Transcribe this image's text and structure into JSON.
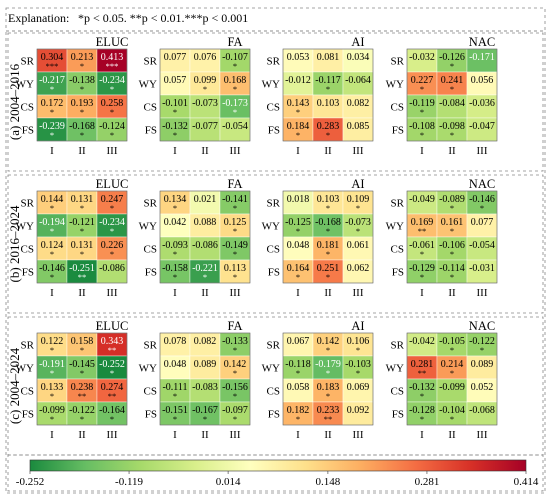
{
  "explanation": {
    "label": "Explanation:",
    "text": "*p < 0.05. **p < 0.01.***p < 0.001"
  },
  "colorbar": {
    "colors": [
      "#1a8a3e",
      "#66bd63",
      "#a6d96a",
      "#d9ef8b",
      "#ffffbf",
      "#fee08b",
      "#fdae61",
      "#f46d43",
      "#d73027",
      "#a50026"
    ],
    "ticks": [
      -0.252,
      -0.119,
      0.014,
      0.148,
      0.281,
      0.414
    ],
    "tick_labels": [
      "-0.252",
      "-0.119",
      "0.014",
      "0.148",
      "0.281",
      "0.414"
    ]
  },
  "chart_data": {
    "type": "heatmap",
    "value_range": [
      -0.252,
      0.414
    ],
    "row_labels": [
      "SR",
      "WY",
      "CS",
      "FS"
    ],
    "col_labels": [
      "I",
      "II",
      "III"
    ],
    "panels": [
      {
        "label": "(a) 2004–2016",
        "charts": [
          {
            "title": "ELUC",
            "values": [
              [
                0.304,
                0.213,
                0.413
              ],
              [
                -0.217,
                -0.138,
                -0.234
              ],
              [
                0.172,
                0.193,
                0.258
              ],
              [
                -0.239,
                -0.168,
                -0.124
              ]
            ],
            "sig": [
              [
                "***",
                "*",
                "***"
              ],
              [
                "*",
                "*",
                "*"
              ],
              [
                "*",
                "*",
                "*"
              ],
              [
                "*",
                "*",
                "*"
              ]
            ]
          },
          {
            "title": "FA",
            "values": [
              [
                0.077,
                0.076,
                -0.107
              ],
              [
                0.057,
                0.099,
                0.168
              ],
              [
                -0.101,
                -0.073,
                -0.173
              ],
              [
                -0.132,
                -0.077,
                -0.054
              ]
            ],
            "sig": [
              [
                "",
                "",
                "*"
              ],
              [
                "",
                "*",
                "*"
              ],
              [
                "*",
                "",
                "*"
              ],
              [
                "*",
                "",
                ""
              ]
            ]
          },
          {
            "title": "AI",
            "values": [
              [
                0.053,
                0.081,
                0.034
              ],
              [
                -0.012,
                -0.117,
                -0.064
              ],
              [
                0.143,
                0.103,
                0.082
              ],
              [
                0.184,
                0.283,
                0.085
              ]
            ],
            "sig": [
              [
                "",
                "",
                ""
              ],
              [
                "",
                "*",
                ""
              ],
              [
                "*",
                "",
                ""
              ],
              [
                "*",
                "*",
                ""
              ]
            ]
          },
          {
            "title": "NAC",
            "values": [
              [
                -0.032,
                -0.126,
                -0.171
              ],
              [
                0.227,
                0.241,
                0.056
              ],
              [
                -0.119,
                -0.084,
                -0.036
              ],
              [
                -0.108,
                -0.098,
                -0.047
              ]
            ],
            "sig": [
              [
                "",
                "*",
                ""
              ],
              [
                "*",
                "*",
                ""
              ],
              [
                "*",
                "",
                ""
              ],
              [
                "*",
                "*",
                ""
              ]
            ]
          }
        ]
      },
      {
        "label": "(b) 2016–2024",
        "charts": [
          {
            "title": "ELUC",
            "values": [
              [
                0.144,
                0.131,
                0.247
              ],
              [
                -0.194,
                -0.121,
                -0.234
              ],
              [
                0.124,
                0.131,
                0.226
              ],
              [
                -0.146,
                -0.251,
                -0.086
              ]
            ],
            "sig": [
              [
                "*",
                "*",
                "*"
              ],
              [
                "*",
                "*",
                "*"
              ],
              [
                "*",
                "*",
                "*"
              ],
              [
                "*",
                "**",
                ""
              ]
            ]
          },
          {
            "title": "FA",
            "values": [
              [
                0.134,
                0.021,
                -0.141
              ],
              [
                0.042,
                0.088,
                0.125
              ],
              [
                -0.093,
                -0.086,
                -0.149
              ],
              [
                -0.158,
                -0.221,
                0.113
              ]
            ],
            "sig": [
              [
                "*",
                "",
                "*"
              ],
              [
                "",
                "",
                "*"
              ],
              [
                "*",
                "",
                "*"
              ],
              [
                "*",
                "*",
                "*"
              ]
            ]
          },
          {
            "title": "AI",
            "values": [
              [
                0.018,
                0.103,
                0.109
              ],
              [
                -0.125,
                -0.168,
                -0.073
              ],
              [
                0.048,
                0.181,
                0.061
              ],
              [
                0.164,
                0.251,
                0.062
              ]
            ],
            "sig": [
              [
                "",
                "*",
                "*"
              ],
              [
                "*",
                "*",
                "*"
              ],
              [
                "",
                "*",
                ""
              ],
              [
                "*",
                "*",
                ""
              ]
            ]
          },
          {
            "title": "NAC",
            "values": [
              [
                -0.049,
                -0.089,
                -0.146
              ],
              [
                0.169,
                0.161,
                0.077
              ],
              [
                -0.061,
                -0.106,
                -0.054
              ],
              [
                -0.129,
                -0.114,
                -0.031
              ]
            ],
            "sig": [
              [
                "",
                "*",
                "*"
              ],
              [
                "**",
                "*",
                ""
              ],
              [
                "*",
                "*",
                ""
              ],
              [
                "*",
                "*",
                ""
              ]
            ]
          }
        ]
      },
      {
        "label": "(c) 2004–2024",
        "charts": [
          {
            "title": "ELUC",
            "values": [
              [
                0.122,
                0.158,
                0.343
              ],
              [
                -0.191,
                -0.145,
                -0.252
              ],
              [
                0.133,
                0.238,
                0.274
              ],
              [
                -0.099,
                -0.122,
                -0.164
              ]
            ],
            "sig": [
              [
                "*",
                "*",
                "**"
              ],
              [
                "*",
                "*",
                "*"
              ],
              [
                "*",
                "**",
                "**"
              ],
              [
                "*",
                "*",
                "*"
              ]
            ]
          },
          {
            "title": "FA",
            "values": [
              [
                0.078,
                0.082,
                -0.133
              ],
              [
                0.048,
                0.089,
                0.142
              ],
              [
                -0.111,
                -0.083,
                -0.156
              ],
              [
                -0.151,
                -0.167,
                -0.097
              ]
            ],
            "sig": [
              [
                "",
                "",
                "*"
              ],
              [
                "",
                "",
                "*"
              ],
              [
                "*",
                "",
                "*"
              ],
              [
                "*",
                "*",
                "*"
              ]
            ]
          },
          {
            "title": "AI",
            "values": [
              [
                0.067,
                0.142,
                0.106
              ],
              [
                -0.118,
                -0.179,
                -0.103
              ],
              [
                0.058,
                0.183,
                0.069
              ],
              [
                0.182,
                0.233,
                0.092
              ]
            ],
            "sig": [
              [
                "",
                "*",
                "*"
              ],
              [
                "*",
                "*",
                "*"
              ],
              [
                "",
                "*",
                ""
              ],
              [
                "*",
                "**",
                ""
              ]
            ]
          },
          {
            "title": "NAC",
            "values": [
              [
                -0.042,
                -0.105,
                -0.122
              ],
              [
                0.281,
                0.214,
                0.089
              ],
              [
                -0.132,
                -0.099,
                0.052
              ],
              [
                -0.128,
                -0.104,
                -0.068
              ]
            ],
            "sig": [
              [
                "",
                "*",
                "*"
              ],
              [
                "**",
                "*",
                ""
              ],
              [
                "*",
                "",
                ""
              ],
              [
                "*",
                "*",
                ""
              ]
            ]
          }
        ]
      }
    ]
  }
}
